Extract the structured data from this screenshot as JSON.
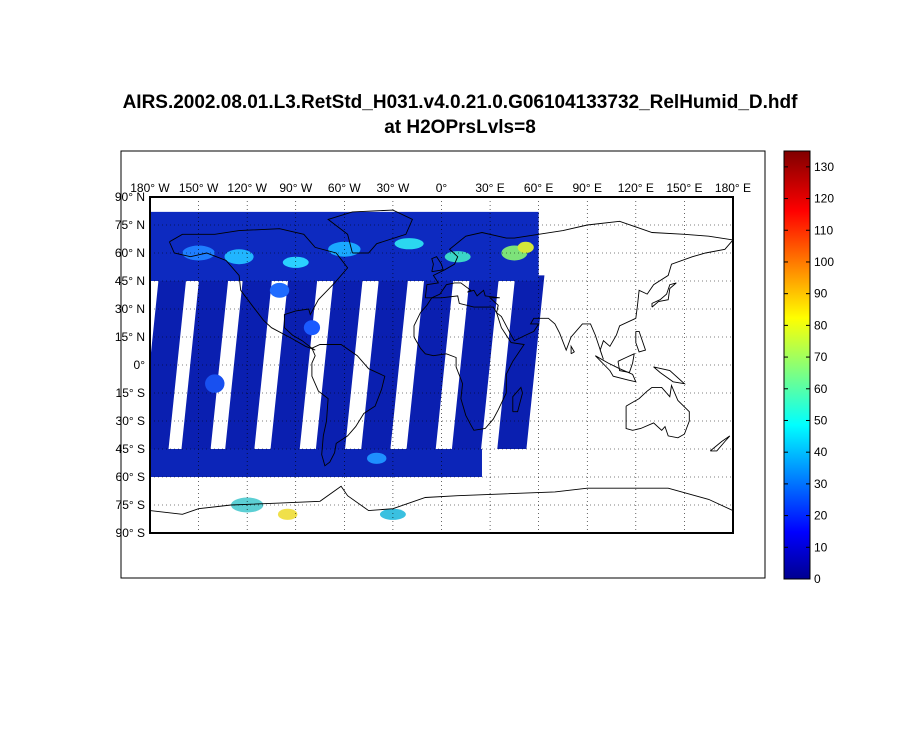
{
  "figure": {
    "title_line1": "AIRS.2002.08.01.L3.RetStd_H031.v4.0.21.0.G06104133732_RelHumid_D.hdf",
    "title_line2": "at H2OPrsLvls=8"
  },
  "map": {
    "projection": "equidistant cylindrical",
    "lon_range": [
      -180,
      180
    ],
    "lat_range": [
      -90,
      90
    ],
    "grid": true,
    "lon_ticks": [
      "180",
      "150",
      "120",
      "90",
      "60",
      "30",
      "0",
      "30",
      "60",
      "90",
      "120",
      "150",
      "180"
    ],
    "lon_hemis": [
      "W",
      "W",
      "W",
      "W",
      "W",
      "W",
      "",
      "E",
      "E",
      "E",
      "E",
      "E",
      "E"
    ],
    "lat_ticks": [
      "90",
      "75",
      "60",
      "45",
      "30",
      "15",
      "0",
      "15",
      "30",
      "45",
      "60",
      "75",
      "90"
    ],
    "lat_hemis": [
      "N",
      "N",
      "N",
      "N",
      "N",
      "N",
      "",
      "S",
      "S",
      "S",
      "S",
      "S",
      "S"
    ],
    "degree_symbol": "°",
    "data_coverage": "orbital swath stripes from 180° W to about 60° E; no data east of 60° E"
  },
  "colorbar": {
    "min": 0,
    "max": 135,
    "ticks": [
      "0",
      "10",
      "20",
      "30",
      "40",
      "50",
      "60",
      "70",
      "80",
      "90",
      "100",
      "110",
      "120",
      "130"
    ],
    "colormap": "jet",
    "colors": [
      "#00008f",
      "#0000ff",
      "#00ffff",
      "#ffff00",
      "#ff0000",
      "#800000"
    ]
  },
  "chart_data": {
    "type": "heatmap",
    "title": "AIRS.2002.08.01.L3.RetStd_H031.v4.0.21.0.G06104133732_RelHumid_D.hdf at H2OPrsLvls=8",
    "x_range": [
      -180,
      180
    ],
    "y_range": [
      -90,
      90
    ],
    "color_range": [
      0,
      135
    ],
    "grid": true,
    "legend": "colorbar right"
  }
}
